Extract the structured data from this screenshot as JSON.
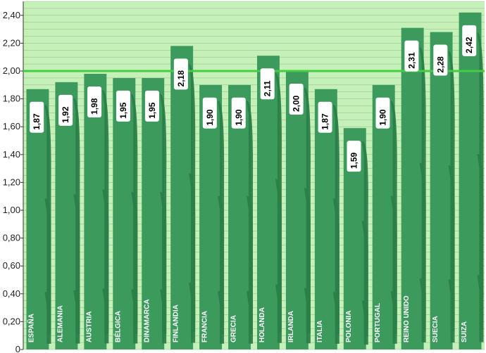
{
  "chart_data": {
    "type": "bar",
    "title": "",
    "xlabel": "",
    "ylabel": "",
    "categories": [
      "ESPAÑA",
      "ALEMANIA",
      "AUSTRIA",
      "BÉLGICA",
      "DINAMARCA",
      "FINLANDIA",
      "FRANCIA",
      "GRECIA",
      "HOLANDA",
      "IRLANDA",
      "ITALIA",
      "POLONIA",
      "PORTUGAL",
      "REINO UNIDO",
      "SUECIA",
      "SUIZA"
    ],
    "values": [
      1.87,
      1.92,
      1.98,
      1.95,
      1.95,
      2.18,
      1.9,
      1.9,
      2.11,
      2.0,
      1.87,
      1.59,
      1.9,
      2.31,
      2.28,
      2.42
    ],
    "value_labels": [
      "1,87",
      "1,92",
      "1,98",
      "1,95",
      "1,95",
      "2,18",
      "1,90",
      "1,90",
      "2,11",
      "2,00",
      "1,87",
      "1,59",
      "1,90",
      "2,31",
      "2,28",
      "2,42"
    ],
    "ylim": [
      0,
      2.5
    ],
    "yticks": [
      0,
      0.2,
      0.4,
      0.6,
      0.8,
      1.0,
      1.2,
      1.4,
      1.6,
      1.8,
      2.0,
      2.2,
      2.4
    ],
    "ytick_labels": [
      "0",
      "0,20",
      "0,40",
      "0,60",
      "0,80",
      "1,00",
      "1,20",
      "1,40",
      "1,60",
      "1,80",
      "2,00",
      "2,20",
      "2,40"
    ],
    "reference_line": 2.0,
    "grid": true,
    "colors": {
      "background": "#c5f0b8",
      "bar": "#3c9a5c",
      "bar_dark": "#2a8048",
      "reference_line": "#44cc44",
      "grid": "#6a8a6a"
    }
  }
}
